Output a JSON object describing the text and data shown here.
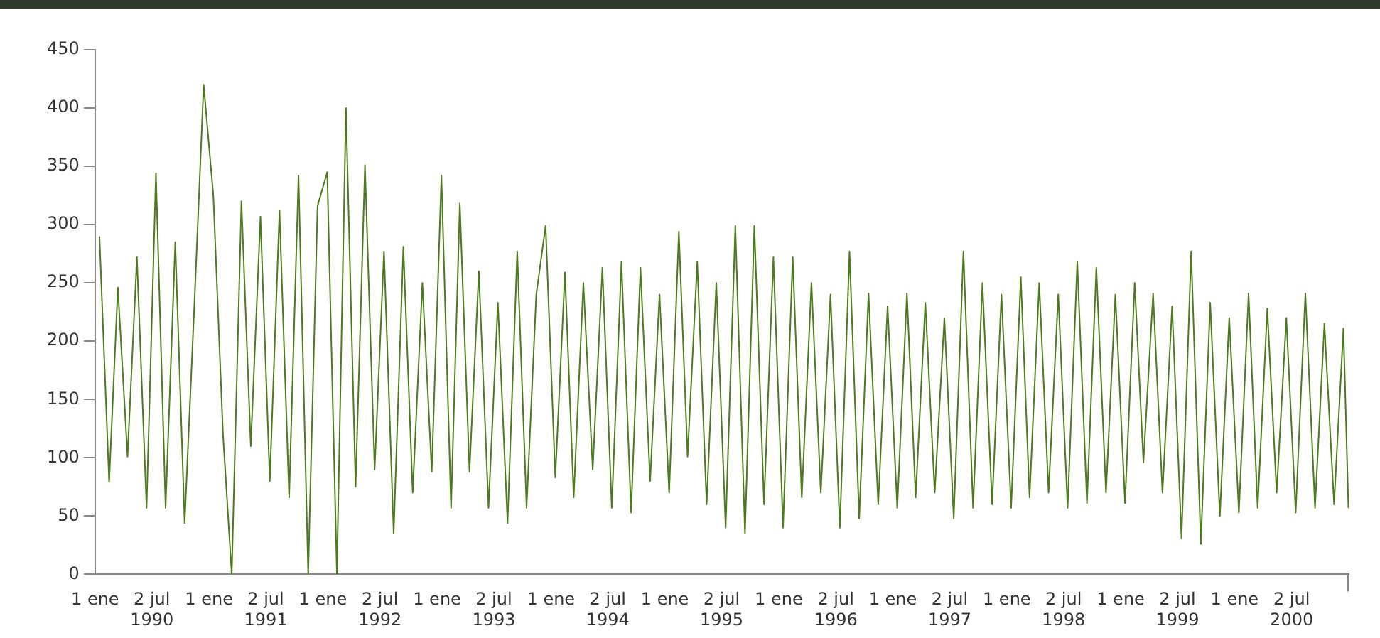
{
  "chart_data": {
    "type": "line",
    "x": [
      "1990-01-15",
      "1990-02-15",
      "1990-03-15",
      "1990-04-15",
      "1990-05-15",
      "1990-06-15",
      "1990-07-15",
      "1990-08-15",
      "1990-09-15",
      "1990-10-15",
      "1990-11-15",
      "1990-12-15",
      "1991-01-15",
      "1991-02-15",
      "1991-03-15",
      "1991-04-15",
      "1991-05-15",
      "1991-06-15",
      "1991-07-15",
      "1991-08-15",
      "1991-09-15",
      "1991-10-15",
      "1991-11-15",
      "1991-12-15",
      "1992-01-15",
      "1992-02-15",
      "1992-03-15",
      "1992-04-15",
      "1992-05-15",
      "1992-06-15",
      "1992-07-15",
      "1992-08-15",
      "1992-09-15",
      "1992-10-15",
      "1992-11-15",
      "1992-12-15",
      "1993-01-15",
      "1993-02-15",
      "1993-03-15",
      "1993-04-15",
      "1993-05-15",
      "1993-06-15",
      "1993-07-15",
      "1993-08-15",
      "1993-09-15",
      "1993-10-15",
      "1993-11-15",
      "1993-12-15",
      "1994-01-15",
      "1994-02-15",
      "1994-03-15",
      "1994-04-15",
      "1994-05-15",
      "1994-06-15",
      "1994-07-15",
      "1994-08-15",
      "1994-09-15",
      "1994-10-15",
      "1994-11-15",
      "1994-12-15",
      "1995-01-15",
      "1995-02-15",
      "1995-03-15",
      "1995-04-15",
      "1995-05-15",
      "1995-06-15",
      "1995-07-15",
      "1995-08-15",
      "1995-09-15",
      "1995-10-15",
      "1995-11-15",
      "1995-12-15",
      "1996-01-15",
      "1996-02-15",
      "1996-03-15",
      "1996-04-15",
      "1996-05-15",
      "1996-06-15",
      "1996-07-15",
      "1996-08-15",
      "1996-09-15",
      "1996-10-15",
      "1996-11-15",
      "1996-12-15",
      "1997-01-15",
      "1997-02-15",
      "1997-03-15",
      "1997-04-15",
      "1997-05-15",
      "1997-06-15",
      "1997-07-15",
      "1997-08-15",
      "1997-09-15",
      "1997-10-15",
      "1997-11-15",
      "1997-12-15",
      "1998-01-15",
      "1998-02-15",
      "1998-03-15",
      "1998-04-15",
      "1998-05-15",
      "1998-06-15",
      "1998-07-15",
      "1998-08-15",
      "1998-09-15",
      "1998-10-15",
      "1998-11-15",
      "1998-12-15",
      "1999-01-15",
      "1999-02-15",
      "1999-03-15",
      "1999-04-15",
      "1999-05-15",
      "1999-06-15",
      "1999-07-15",
      "1999-08-15",
      "1999-09-15",
      "1999-10-15",
      "1999-11-15",
      "1999-12-15",
      "2000-01-15",
      "2000-02-15",
      "2000-03-15",
      "2000-04-15",
      "2000-05-15",
      "2000-06-15",
      "2000-07-15",
      "2000-08-15",
      "2000-09-15",
      "2000-10-15",
      "2000-11-15",
      "2000-12-15",
      "2000-12-31"
    ],
    "series": [
      {
        "color": "#4e7a1e",
        "values": [
          290,
          79,
          246,
          101,
          272,
          57,
          344,
          57,
          285,
          44,
          230,
          420,
          325,
          120,
          0,
          320,
          110,
          307,
          80,
          312,
          66,
          342,
          0,
          316,
          345,
          0,
          400,
          75,
          351,
          90,
          277,
          35,
          281,
          70,
          250,
          88,
          342,
          57,
          318,
          88,
          260,
          57,
          233,
          44,
          277,
          57,
          240,
          299,
          83,
          259,
          66,
          250,
          90,
          263,
          57,
          268,
          53,
          263,
          80,
          240,
          70,
          294,
          101,
          268,
          60,
          250,
          40,
          299,
          35,
          299,
          60,
          272,
          40,
          272,
          66,
          250,
          70,
          240,
          40,
          277,
          48,
          241,
          60,
          230,
          57,
          241,
          66,
          233,
          70,
          220,
          48,
          277,
          57,
          250,
          60,
          240,
          57,
          255,
          66,
          250,
          70,
          240,
          57,
          268,
          61,
          263,
          70,
          240,
          61,
          250,
          96,
          241,
          70,
          230,
          31,
          277,
          26,
          233,
          50,
          220,
          53,
          241,
          57,
          228,
          70,
          220,
          53,
          241,
          57,
          215,
          60,
          211,
          57
        ]
      }
    ],
    "xlim": [
      "1990-01-01",
      "2001-01-01"
    ],
    "xticks": [
      {
        "value": "1990-01-01",
        "label": "1 ene"
      },
      {
        "value": "1990-07-02",
        "label": "2 jul\n1990"
      },
      {
        "value": "1991-01-01",
        "label": "1 ene"
      },
      {
        "value": "1991-07-02",
        "label": "2 jul\n1991"
      },
      {
        "value": "1992-01-01",
        "label": "1 ene"
      },
      {
        "value": "1992-07-02",
        "label": "2 jul\n1992"
      },
      {
        "value": "1993-01-01",
        "label": "1 ene"
      },
      {
        "value": "1993-07-02",
        "label": "2 jul\n1993"
      },
      {
        "value": "1994-01-01",
        "label": "1 ene"
      },
      {
        "value": "1994-07-02",
        "label": "2 jul\n1994"
      },
      {
        "value": "1995-01-01",
        "label": "1 ene"
      },
      {
        "value": "1995-07-02",
        "label": "2 jul\n1995"
      },
      {
        "value": "1996-01-01",
        "label": "1 ene"
      },
      {
        "value": "1996-07-02",
        "label": "2 jul\n1996"
      },
      {
        "value": "1997-01-01",
        "label": "1 ene"
      },
      {
        "value": "1997-07-02",
        "label": "2 jul\n1997"
      },
      {
        "value": "1998-01-01",
        "label": "1 ene"
      },
      {
        "value": "1998-07-02",
        "label": "2 jul\n1998"
      },
      {
        "value": "1999-01-01",
        "label": "1 ene"
      },
      {
        "value": "1999-07-02",
        "label": "2 jul\n1999"
      },
      {
        "value": "2000-01-01",
        "label": "1 ene"
      },
      {
        "value": "2000-07-02",
        "label": "2 jul\n2000"
      },
      {
        "value": "2001-01-01",
        "label": null
      }
    ],
    "ylim": [
      0,
      450
    ],
    "yticks": [
      0,
      50,
      100,
      150,
      200,
      250,
      300,
      350,
      400,
      450
    ],
    "grid": false,
    "legend": false,
    "marker": "none",
    "line_style": "solid"
  }
}
